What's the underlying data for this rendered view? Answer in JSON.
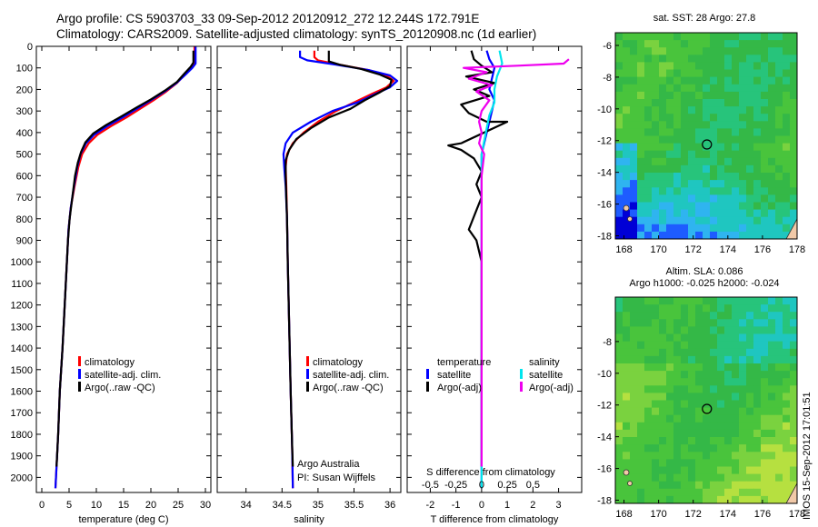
{
  "header": {
    "line1": "Argo profile: CS 5903703_33 09-Sep-2012 20120912_272 12.244S 172.791E",
    "line2": "Climatology: CARS2009. Satellite-adjusted climatology: synTS_20120908.nc (1d earlier)"
  },
  "colors": {
    "climatology": "#ff0000",
    "satellite_adj": "#0000ff",
    "argo": "#000000",
    "sal_satellite": "#00e5ee",
    "sal_argo": "#ee00ee"
  },
  "legend": {
    "climatology": "climatology",
    "satellite_adj": "satellite-adj. clim.",
    "argo": "Argo(..raw -QC)",
    "temperature": "temperature",
    "salinity": "salinity",
    "satellite": "satellite",
    "argo_adj": "Argo(-adj)"
  },
  "credits": {
    "line1": "Argo Australia",
    "line2": "PI: Susan Wijffels"
  },
  "stamp": "IMOS 15-Sep-2012 17:01:51",
  "chart_data": [
    {
      "type": "line",
      "id": "temperature",
      "xlabel": "temperature (deg C)",
      "ylim": [
        2070,
        0
      ],
      "xlim": [
        -1,
        31
      ],
      "xticks": [
        0,
        5,
        10,
        15,
        20,
        25,
        30
      ],
      "yticks": [
        0,
        100,
        200,
        300,
        400,
        500,
        600,
        700,
        800,
        900,
        1000,
        1100,
        1200,
        1300,
        1400,
        1500,
        1600,
        1700,
        1800,
        1900,
        2000
      ],
      "series": [
        {
          "name": "climatology",
          "color_key": "climatology",
          "points": [
            [
              28.0,
              0
            ],
            [
              28.0,
              80
            ],
            [
              27.4,
              100
            ],
            [
              26.3,
              130
            ],
            [
              24.8,
              170
            ],
            [
              22.8,
              210
            ],
            [
              20.5,
              250
            ],
            [
              18.0,
              290
            ],
            [
              15.5,
              330
            ],
            [
              12.7,
              370
            ],
            [
              10.2,
              410
            ],
            [
              8.6,
              450
            ],
            [
              7.4,
              500
            ],
            [
              6.7,
              560
            ],
            [
              6.0,
              650
            ],
            [
              5.3,
              750
            ],
            [
              4.9,
              850
            ],
            [
              4.6,
              1000
            ],
            [
              4.2,
              1200
            ],
            [
              3.8,
              1400
            ],
            [
              3.3,
              1600
            ],
            [
              3.0,
              1800
            ],
            [
              2.7,
              1950
            ],
            [
              2.5,
              2050
            ]
          ]
        },
        {
          "name": "satellite-adj. clim.",
          "color_key": "satellite_adj",
          "points": [
            [
              28.2,
              0
            ],
            [
              28.2,
              80
            ],
            [
              27.6,
              100
            ],
            [
              26.4,
              130
            ],
            [
              24.7,
              170
            ],
            [
              22.5,
              210
            ],
            [
              20.0,
              250
            ],
            [
              17.4,
              290
            ],
            [
              14.8,
              330
            ],
            [
              12.0,
              370
            ],
            [
              9.6,
              410
            ],
            [
              8.1,
              450
            ],
            [
              7.1,
              500
            ],
            [
              6.5,
              560
            ],
            [
              5.9,
              650
            ],
            [
              5.3,
              750
            ],
            [
              4.9,
              850
            ],
            [
              4.6,
              1000
            ],
            [
              4.2,
              1200
            ],
            [
              3.8,
              1400
            ],
            [
              3.3,
              1600
            ],
            [
              3.0,
              1800
            ],
            [
              2.7,
              1950
            ],
            [
              2.5,
              2050
            ]
          ]
        },
        {
          "name": "Argo(..raw -QC)",
          "color_key": "argo",
          "points": [
            [
              27.8,
              20
            ],
            [
              27.8,
              75
            ],
            [
              27.3,
              95
            ],
            [
              26.2,
              125
            ],
            [
              24.8,
              165
            ],
            [
              22.6,
              205
            ],
            [
              20.1,
              245
            ],
            [
              17.3,
              285
            ],
            [
              14.6,
              325
            ],
            [
              11.8,
              365
            ],
            [
              9.4,
              405
            ],
            [
              8.0,
              445
            ],
            [
              7.2,
              490
            ],
            [
              6.6,
              540
            ],
            [
              6.1,
              600
            ],
            [
              5.6,
              700
            ],
            [
              5.1,
              800
            ],
            [
              4.8,
              900
            ],
            [
              4.6,
              1000
            ],
            [
              4.2,
              1200
            ],
            [
              3.8,
              1400
            ],
            [
              3.3,
              1600
            ],
            [
              3.0,
              1800
            ],
            [
              2.7,
              1950
            ]
          ]
        }
      ]
    },
    {
      "type": "line",
      "id": "salinity",
      "xlabel": "salinity",
      "ylim": [
        2070,
        0
      ],
      "xlim": [
        33.6,
        36.15
      ],
      "xticks": [
        34,
        34.5,
        35,
        35.5,
        36
      ],
      "series": [
        {
          "name": "climatology",
          "color_key": "climatology",
          "points": [
            [
              34.95,
              20
            ],
            [
              34.95,
              50
            ],
            [
              35.0,
              65
            ],
            [
              35.3,
              85
            ],
            [
              35.7,
              110
            ],
            [
              35.95,
              135
            ],
            [
              36.05,
              160
            ],
            [
              35.95,
              190
            ],
            [
              35.75,
              220
            ],
            [
              35.5,
              260
            ],
            [
              35.25,
              300
            ],
            [
              35.0,
              350
            ],
            [
              34.8,
              400
            ],
            [
              34.65,
              450
            ],
            [
              34.57,
              500
            ],
            [
              34.55,
              560
            ],
            [
              34.56,
              650
            ],
            [
              34.57,
              800
            ],
            [
              34.58,
              1000
            ],
            [
              34.6,
              1300
            ],
            [
              34.62,
              1600
            ],
            [
              34.64,
              1850
            ],
            [
              34.65,
              2050
            ]
          ]
        },
        {
          "name": "satellite-adj. clim.",
          "color_key": "satellite_adj",
          "points": [
            [
              34.75,
              20
            ],
            [
              34.75,
              50
            ],
            [
              34.85,
              65
            ],
            [
              35.25,
              85
            ],
            [
              35.7,
              110
            ],
            [
              36.0,
              135
            ],
            [
              36.1,
              160
            ],
            [
              36.0,
              190
            ],
            [
              35.8,
              220
            ],
            [
              35.55,
              260
            ],
            [
              35.2,
              300
            ],
            [
              34.9,
              350
            ],
            [
              34.65,
              400
            ],
            [
              34.55,
              450
            ],
            [
              34.52,
              500
            ],
            [
              34.53,
              560
            ],
            [
              34.55,
              650
            ],
            [
              34.57,
              800
            ],
            [
              34.58,
              1000
            ],
            [
              34.6,
              1300
            ],
            [
              34.62,
              1600
            ],
            [
              34.64,
              1850
            ],
            [
              34.65,
              2050
            ]
          ]
        },
        {
          "name": "Argo(..raw -QC)",
          "color_key": "argo",
          "points": [
            [
              35.15,
              20
            ],
            [
              35.15,
              70
            ],
            [
              35.3,
              85
            ],
            [
              35.6,
              105
            ],
            [
              35.85,
              130
            ],
            [
              36.02,
              155
            ],
            [
              36.0,
              185
            ],
            [
              35.85,
              215
            ],
            [
              35.65,
              250
            ],
            [
              35.45,
              290
            ],
            [
              35.15,
              330
            ],
            [
              34.9,
              380
            ],
            [
              34.7,
              430
            ],
            [
              34.6,
              480
            ],
            [
              34.55,
              530
            ],
            [
              34.55,
              600
            ],
            [
              34.56,
              700
            ],
            [
              34.57,
              800
            ],
            [
              34.58,
              1000
            ],
            [
              34.6,
              1300
            ],
            [
              34.62,
              1600
            ],
            [
              34.64,
              1850
            ],
            [
              34.65,
              1950
            ]
          ]
        }
      ],
      "annotations": [
        "Argo Australia",
        "PI: Susan Wijffels"
      ]
    },
    {
      "type": "line",
      "id": "difference",
      "xlabel": "T difference from climatology",
      "x2label": "S difference from climatology",
      "ylim": [
        2070,
        0
      ],
      "xlim": [
        -2.9,
        3.9
      ],
      "xticks": [
        -2,
        -1,
        0,
        1,
        2,
        3
      ],
      "x2ticks": [
        {
          "label": "-0.5",
          "t": -2
        },
        {
          "label": "-0.25",
          "t": -1
        },
        {
          "label": "0",
          "t": 0
        },
        {
          "label": "0.25",
          "t": 1
        },
        {
          "label": "0.5",
          "t": 2
        }
      ],
      "series": [
        {
          "name": "temperature satellite",
          "color_key": "satellite_adj",
          "points": [
            [
              0.2,
              20
            ],
            [
              0.3,
              60
            ],
            [
              0.5,
              100
            ],
            [
              0.4,
              150
            ],
            [
              0.3,
              200
            ],
            [
              0.5,
              250
            ],
            [
              0.4,
              300
            ],
            [
              0.3,
              350
            ],
            [
              0.2,
              400
            ],
            [
              0.1,
              450
            ],
            [
              0.0,
              500
            ],
            [
              0.0,
              600
            ],
            [
              0.0,
              800
            ],
            [
              0.0,
              1000
            ],
            [
              0.0,
              1300
            ],
            [
              0.0,
              1600
            ],
            [
              0.0,
              2050
            ]
          ]
        },
        {
          "name": "temperature Argo(-adj)",
          "color_key": "argo",
          "points": [
            [
              -0.4,
              20
            ],
            [
              -0.3,
              60
            ],
            [
              0.0,
              90
            ],
            [
              0.4,
              120
            ],
            [
              -0.6,
              140
            ],
            [
              0.5,
              170
            ],
            [
              -0.3,
              200
            ],
            [
              0.3,
              230
            ],
            [
              -0.8,
              270
            ],
            [
              -0.5,
              310
            ],
            [
              0.2,
              350
            ],
            [
              1.0,
              350
            ],
            [
              -0.8,
              450
            ],
            [
              -1.3,
              460
            ],
            [
              -0.8,
              480
            ],
            [
              -0.3,
              520
            ],
            [
              0.0,
              580
            ],
            [
              -0.2,
              640
            ],
            [
              0.0,
              700
            ],
            [
              -0.2,
              760
            ],
            [
              -0.5,
              850
            ],
            [
              -0.2,
              900
            ],
            [
              0.0,
              1000
            ],
            [
              0.0,
              1300
            ],
            [
              0.0,
              1600
            ],
            [
              0.0,
              1950
            ]
          ]
        },
        {
          "name": "salinity satellite",
          "color_key": "sal_satellite",
          "points": [
            [
              0.7,
              20
            ],
            [
              0.8,
              80
            ],
            [
              0.6,
              140
            ],
            [
              0.5,
              200
            ],
            [
              0.5,
              260
            ],
            [
              0.3,
              320
            ],
            [
              0.2,
              380
            ],
            [
              0.1,
              440
            ],
            [
              0.0,
              500
            ],
            [
              0.0,
              600
            ],
            [
              0.0,
              800
            ],
            [
              0.0,
              1000
            ],
            [
              0.0,
              1300
            ],
            [
              0.0,
              1600
            ],
            [
              0.0,
              2050
            ]
          ]
        },
        {
          "name": "salinity Argo(-adj)",
          "color_key": "sal_argo",
          "points": [
            [
              3.4,
              60
            ],
            [
              3.2,
              80
            ],
            [
              1.4,
              90
            ],
            [
              -0.7,
              100
            ],
            [
              0.2,
              120
            ],
            [
              -0.5,
              150
            ],
            [
              0.4,
              180
            ],
            [
              -0.2,
              210
            ],
            [
              0.3,
              250
            ],
            [
              0.0,
              300
            ],
            [
              -0.1,
              350
            ],
            [
              0.0,
              400
            ],
            [
              -0.1,
              450
            ],
            [
              0.1,
              500
            ],
            [
              0.0,
              600
            ],
            [
              0.0,
              800
            ],
            [
              0.0,
              1000
            ],
            [
              0.0,
              1300
            ],
            [
              0.0,
              1600
            ],
            [
              0.0,
              1950
            ]
          ]
        }
      ]
    },
    {
      "type": "heatmap",
      "id": "sst_map",
      "title": "sat. SST: 28 Argo: 27.8",
      "xlim": [
        167.5,
        178.0
      ],
      "ylim": [
        -18.2,
        -5.2
      ],
      "xticks": [
        168,
        170,
        172,
        174,
        176,
        178
      ],
      "yticks": [
        -6,
        -8,
        -10,
        -12,
        -14,
        -16,
        -18
      ],
      "float_position": [
        172.791,
        -12.244
      ],
      "palette": [
        "#0000d6",
        "#1e5cff",
        "#2fb4f0",
        "#1fc6c0",
        "#27c47b",
        "#34b847",
        "#49c43c",
        "#7ad23f",
        "#b6e040"
      ]
    },
    {
      "type": "heatmap",
      "id": "sla_map",
      "title": "Altim. SLA: 0.086",
      "subtitle": "Argo h1000: -0.025 h2000: -0.024",
      "xlim": [
        167.5,
        178.0
      ],
      "ylim": [
        -18.2,
        -5.2
      ],
      "xticks": [
        168,
        170,
        172,
        174,
        176,
        178
      ],
      "yticks": [
        -8,
        -10,
        -12,
        -14,
        -16,
        -18
      ],
      "float_position": [
        172.791,
        -12.244
      ],
      "palette": [
        "#1fc6c0",
        "#27c47b",
        "#34b847",
        "#49c43c",
        "#7ad23f",
        "#b6e040",
        "#e8ea3c",
        "#f5c84a"
      ]
    }
  ]
}
